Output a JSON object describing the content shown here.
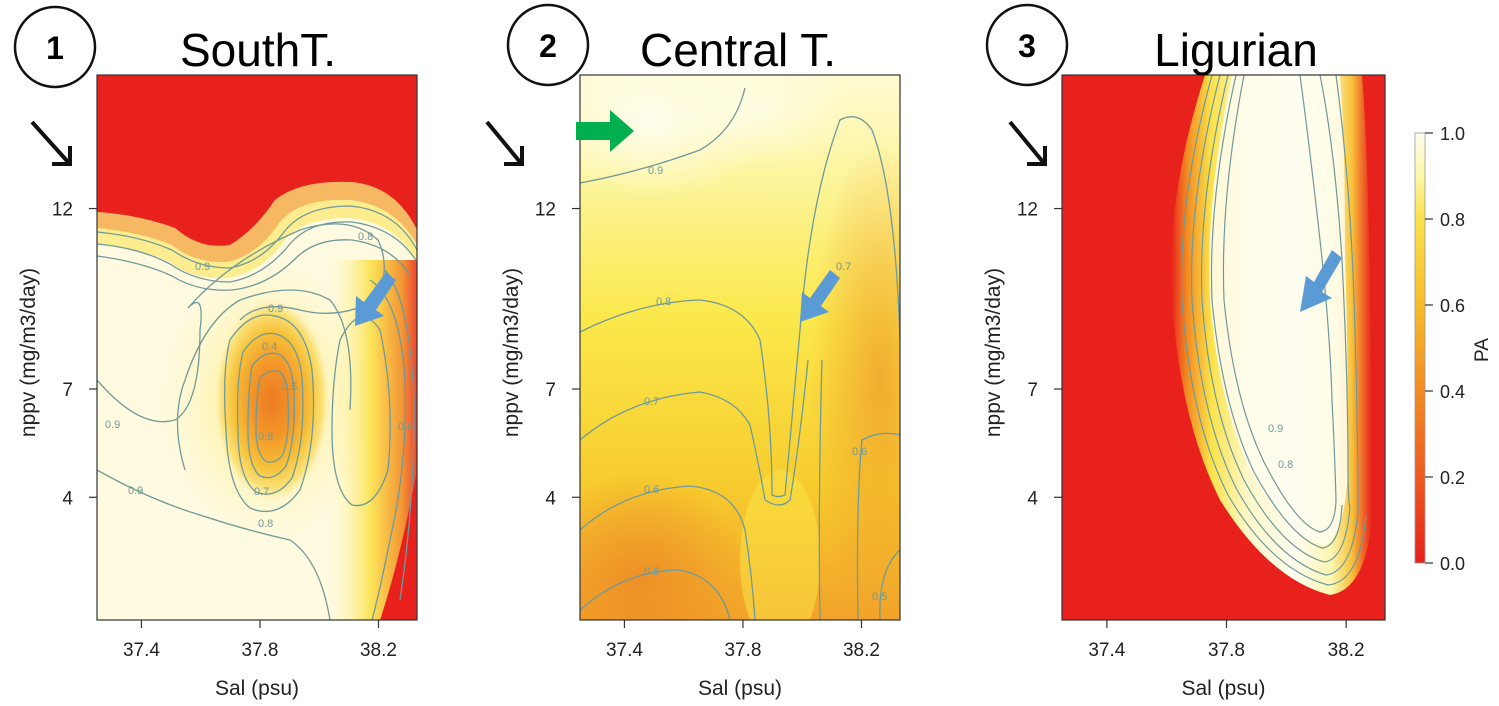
{
  "figure": {
    "panels": [
      {
        "number": "1",
        "title": "SouthT."
      },
      {
        "number": "2",
        "title": "Central T."
      },
      {
        "number": "3",
        "title": "Ligurian"
      }
    ],
    "colorbar": {
      "label": "PA",
      "ticks": [
        "0.0",
        "0.2",
        "0.4",
        "0.6",
        "0.8",
        "1.0"
      ],
      "tick_values": [
        0.0,
        0.2,
        0.4,
        0.6,
        0.8,
        1.0
      ],
      "low_color": "#e8211c",
      "high_color": "#fffdf0"
    },
    "arrow_colors": {
      "black": "#111111",
      "blue": "#5b9bd5",
      "green": "#00b050"
    },
    "contour_line_color": "#6f9a9a"
  },
  "chart_data": [
    {
      "type": "heatmap",
      "title": "SouthT.",
      "xlabel": "Sal (psu)",
      "ylabel": "nppv (mg/m3/day)",
      "xlim": [
        37.25,
        38.33
      ],
      "ylim": [
        0.6,
        15.7
      ],
      "x_ticks": [
        37.4,
        37.8,
        38.2
      ],
      "x_tick_labels": [
        "37.4",
        "37.8",
        "38.2"
      ],
      "y_ticks": [
        4,
        7,
        12
      ],
      "y_tick_labels": [
        "4",
        "7",
        "12"
      ],
      "value_label": "PA",
      "value_range": [
        0,
        1
      ],
      "contour_labels": [
        "0.9",
        "0.9",
        "0.9",
        "0.8",
        "0.8",
        "0.7",
        "0.4",
        "0.9",
        "0.8",
        "0.5",
        "0.6"
      ],
      "contour_label_values": [
        0.9,
        0.9,
        0.9,
        0.8,
        0.8,
        0.7,
        0.4,
        0.9,
        0.8,
        0.5,
        0.6
      ],
      "annotations": [
        "black arrow at nppv 12",
        "blue arrow at Sal 38.2, nppv 9"
      ]
    },
    {
      "type": "heatmap",
      "title": "Central T.",
      "xlabel": "Sal (psu)",
      "ylabel": "nppv (mg/m3/day)",
      "xlim": [
        37.25,
        38.33
      ],
      "ylim": [
        0.6,
        15.7
      ],
      "x_ticks": [
        37.4,
        37.8,
        38.2
      ],
      "x_tick_labels": [
        "37.4",
        "37.8",
        "38.2"
      ],
      "y_ticks": [
        4,
        7,
        12
      ],
      "y_tick_labels": [
        "4",
        "7",
        "12"
      ],
      "value_label": "PA",
      "value_range": [
        0,
        1
      ],
      "contour_labels": [
        "0.9",
        "0.8",
        "0.7",
        "0.6",
        "0.5",
        "0.7",
        "0.6",
        "0.5"
      ],
      "contour_label_values": [
        0.9,
        0.8,
        0.7,
        0.6,
        0.5,
        0.7,
        0.6,
        0.5
      ],
      "annotations": [
        "black arrow at nppv 12",
        "green arrow at Sal 37.3, nppv 14",
        "blue arrow at Sal 38.0, nppv 8"
      ]
    },
    {
      "type": "heatmap",
      "title": "Ligurian",
      "xlabel": "Sal (psu)",
      "ylabel": "nppv (mg/m3/day)",
      "xlim": [
        37.25,
        38.33
      ],
      "ylim": [
        0.6,
        15.7
      ],
      "x_ticks": [
        37.4,
        37.8,
        38.2
      ],
      "x_tick_labels": [
        "37.4",
        "37.8",
        "38.2"
      ],
      "y_ticks": [
        4,
        7,
        12
      ],
      "y_tick_labels": [
        "4",
        "7",
        "12"
      ],
      "value_label": "PA",
      "value_range": [
        0,
        1
      ],
      "contour_labels": [
        "0.9",
        "0.8"
      ],
      "contour_label_values": [
        0.9,
        0.8
      ],
      "annotations": [
        "black arrow at nppv 12",
        "blue arrow at Sal 38.1, nppv 8"
      ]
    }
  ]
}
